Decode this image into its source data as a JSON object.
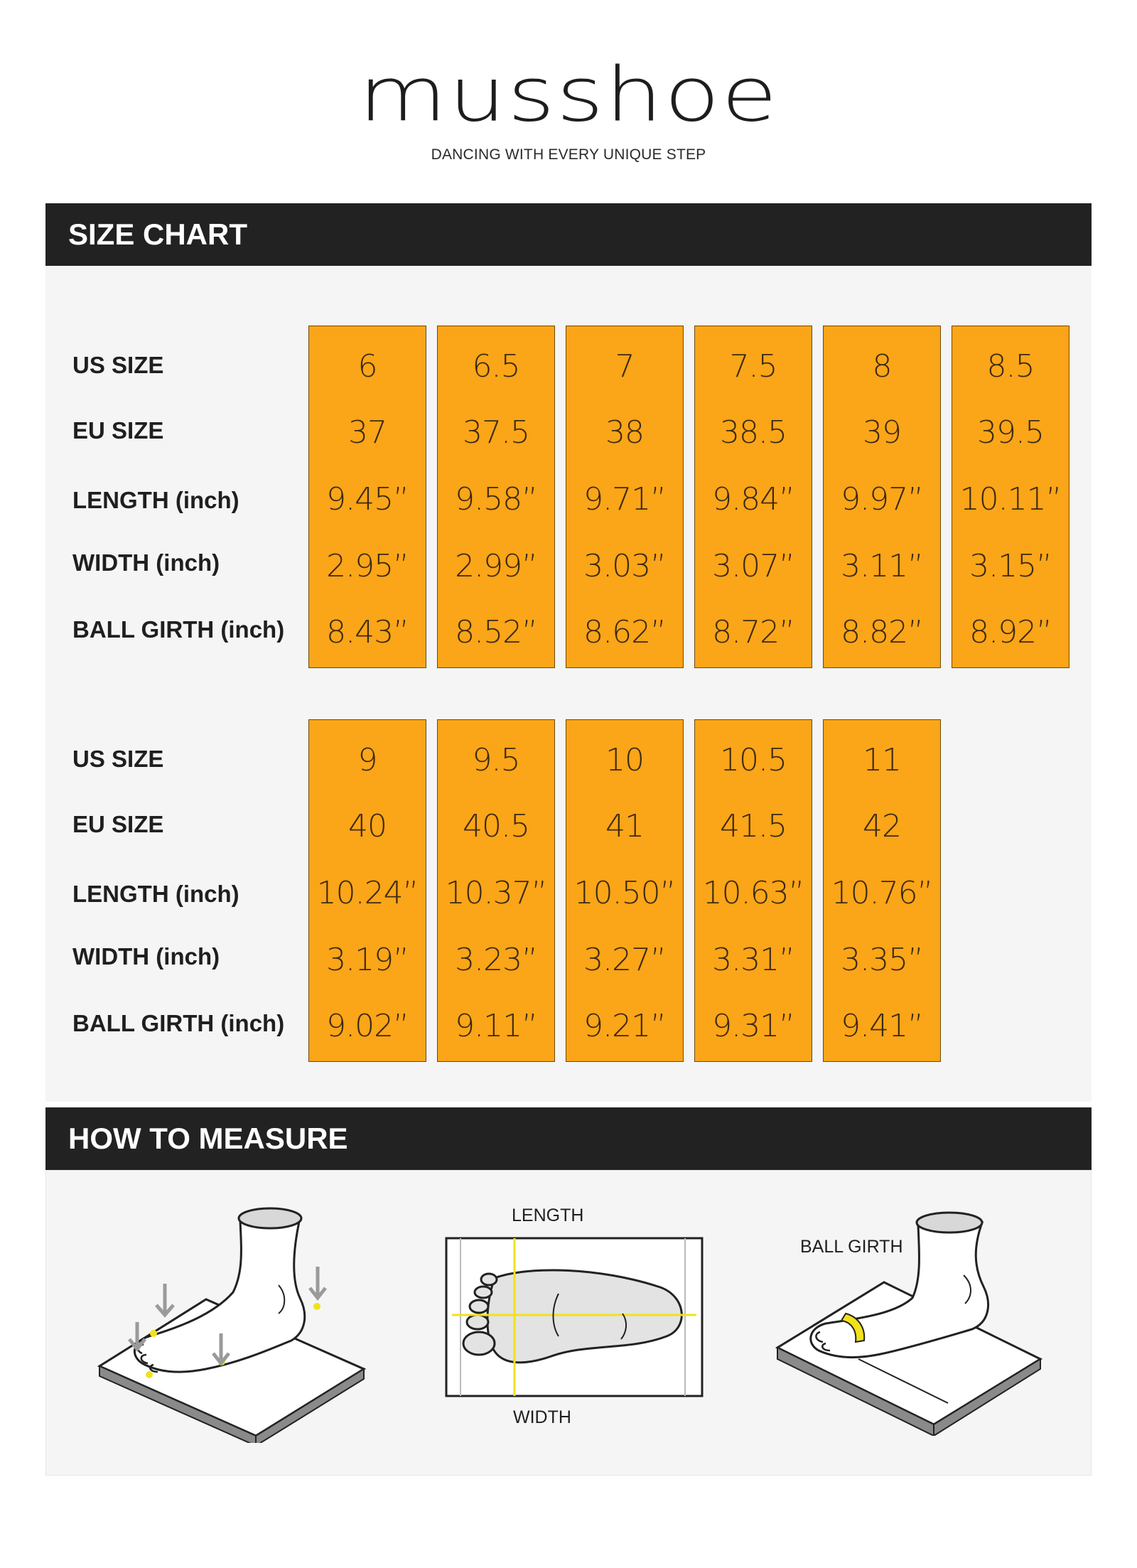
{
  "brand": {
    "name": "musshoe",
    "tagline": "DANCING WITH EVERY UNIQUE STEP"
  },
  "size_chart": {
    "title": "SIZE CHART",
    "row_labels": [
      "US SIZE",
      "EU SIZE",
      "LENGTH (inch)",
      "WIDTH (inch)",
      "BALL GIRTH (inch)"
    ],
    "groups": [
      {
        "columns": [
          {
            "us": "6",
            "eu": "37",
            "length": "9.45”",
            "width": "2.95”",
            "girth": "8.43”"
          },
          {
            "us": "6.5",
            "eu": "37.5",
            "length": "9.58”",
            "width": "2.99”",
            "girth": "8.52”"
          },
          {
            "us": "7",
            "eu": "38",
            "length": "9.71”",
            "width": "3.03”",
            "girth": "8.62”"
          },
          {
            "us": "7.5",
            "eu": "38.5",
            "length": "9.84”",
            "width": "3.07”",
            "girth": "8.72”"
          },
          {
            "us": "8",
            "eu": "39",
            "length": "9.97”",
            "width": "3.11”",
            "girth": "8.82”"
          },
          {
            "us": "8.5",
            "eu": "39.5",
            "length": "10.11”",
            "width": "3.15”",
            "girth": "8.92”"
          }
        ]
      },
      {
        "columns": [
          {
            "us": "9",
            "eu": "40",
            "length": "10.24”",
            "width": "3.19”",
            "girth": "9.02”"
          },
          {
            "us": "9.5",
            "eu": "40.5",
            "length": "10.37”",
            "width": "3.23”",
            "girth": "9.11”"
          },
          {
            "us": "10",
            "eu": "41",
            "length": "10.50”",
            "width": "3.27”",
            "girth": "9.21”"
          },
          {
            "us": "10.5",
            "eu": "41.5",
            "length": "10.63”",
            "width": "3.31”",
            "girth": "9.31”"
          },
          {
            "us": "11",
            "eu": "42",
            "length": "10.76”",
            "width": "3.35”",
            "girth": "9.41”"
          }
        ]
      }
    ]
  },
  "how_to_measure": {
    "title": "HOW TO MEASURE",
    "length_label": "LENGTH",
    "width_label": "WIDTH",
    "ball_girth_label": "BALL GIRTH"
  },
  "colors": {
    "cell_fill": "#fba518",
    "header_bg": "#222222",
    "panel_bg": "#f5f5f5",
    "marker_yellow": "#f2e21a"
  }
}
